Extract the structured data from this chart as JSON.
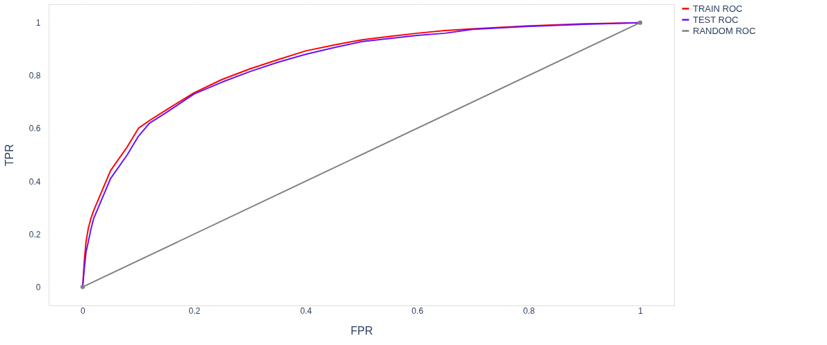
{
  "chart_data": {
    "type": "line",
    "xlabel": "FPR",
    "ylabel": "TPR",
    "xlim": [
      -0.061,
      1.061
    ],
    "ylim": [
      -0.07,
      1.07
    ],
    "xticks": [
      0,
      0.2,
      0.4,
      0.6,
      0.8,
      1
    ],
    "yticks": [
      0,
      0.2,
      0.4,
      0.6,
      0.8,
      1
    ],
    "grid": true,
    "legend": "top right",
    "series": [
      {
        "name": "TRAIN ROC",
        "color": "#ff0000",
        "marker": "none",
        "x": [
          0,
          0.003,
          0.006,
          0.01,
          0.015,
          0.02,
          0.03,
          0.04,
          0.05,
          0.06,
          0.08,
          0.1,
          0.12,
          0.15,
          0.2,
          0.25,
          0.3,
          0.35,
          0.4,
          0.45,
          0.5,
          0.55,
          0.6,
          0.65,
          0.7,
          0.8,
          0.9,
          1
        ],
        "values": [
          0,
          0.1,
          0.17,
          0.22,
          0.26,
          0.29,
          0.34,
          0.39,
          0.44,
          0.47,
          0.53,
          0.6,
          0.63,
          0.67,
          0.735,
          0.785,
          0.825,
          0.86,
          0.893,
          0.915,
          0.935,
          0.948,
          0.96,
          0.97,
          0.977,
          0.988,
          0.996,
          1
        ]
      },
      {
        "name": "TEST ROC",
        "color": "#6611ff",
        "marker": "none",
        "x": [
          0,
          0.003,
          0.006,
          0.01,
          0.015,
          0.02,
          0.03,
          0.04,
          0.05,
          0.06,
          0.08,
          0.1,
          0.12,
          0.15,
          0.2,
          0.25,
          0.3,
          0.35,
          0.4,
          0.45,
          0.5,
          0.55,
          0.6,
          0.65,
          0.7,
          0.8,
          0.9,
          1
        ],
        "values": [
          0,
          0.07,
          0.13,
          0.17,
          0.22,
          0.26,
          0.31,
          0.36,
          0.41,
          0.44,
          0.5,
          0.57,
          0.62,
          0.66,
          0.73,
          0.775,
          0.815,
          0.85,
          0.88,
          0.905,
          0.928,
          0.94,
          0.952,
          0.96,
          0.975,
          0.986,
          0.994,
          1
        ]
      },
      {
        "name": "RANDOM ROC",
        "color": "#808080",
        "marker": "circle",
        "x": [
          0,
          1
        ],
        "values": [
          0,
          1
        ]
      }
    ]
  }
}
